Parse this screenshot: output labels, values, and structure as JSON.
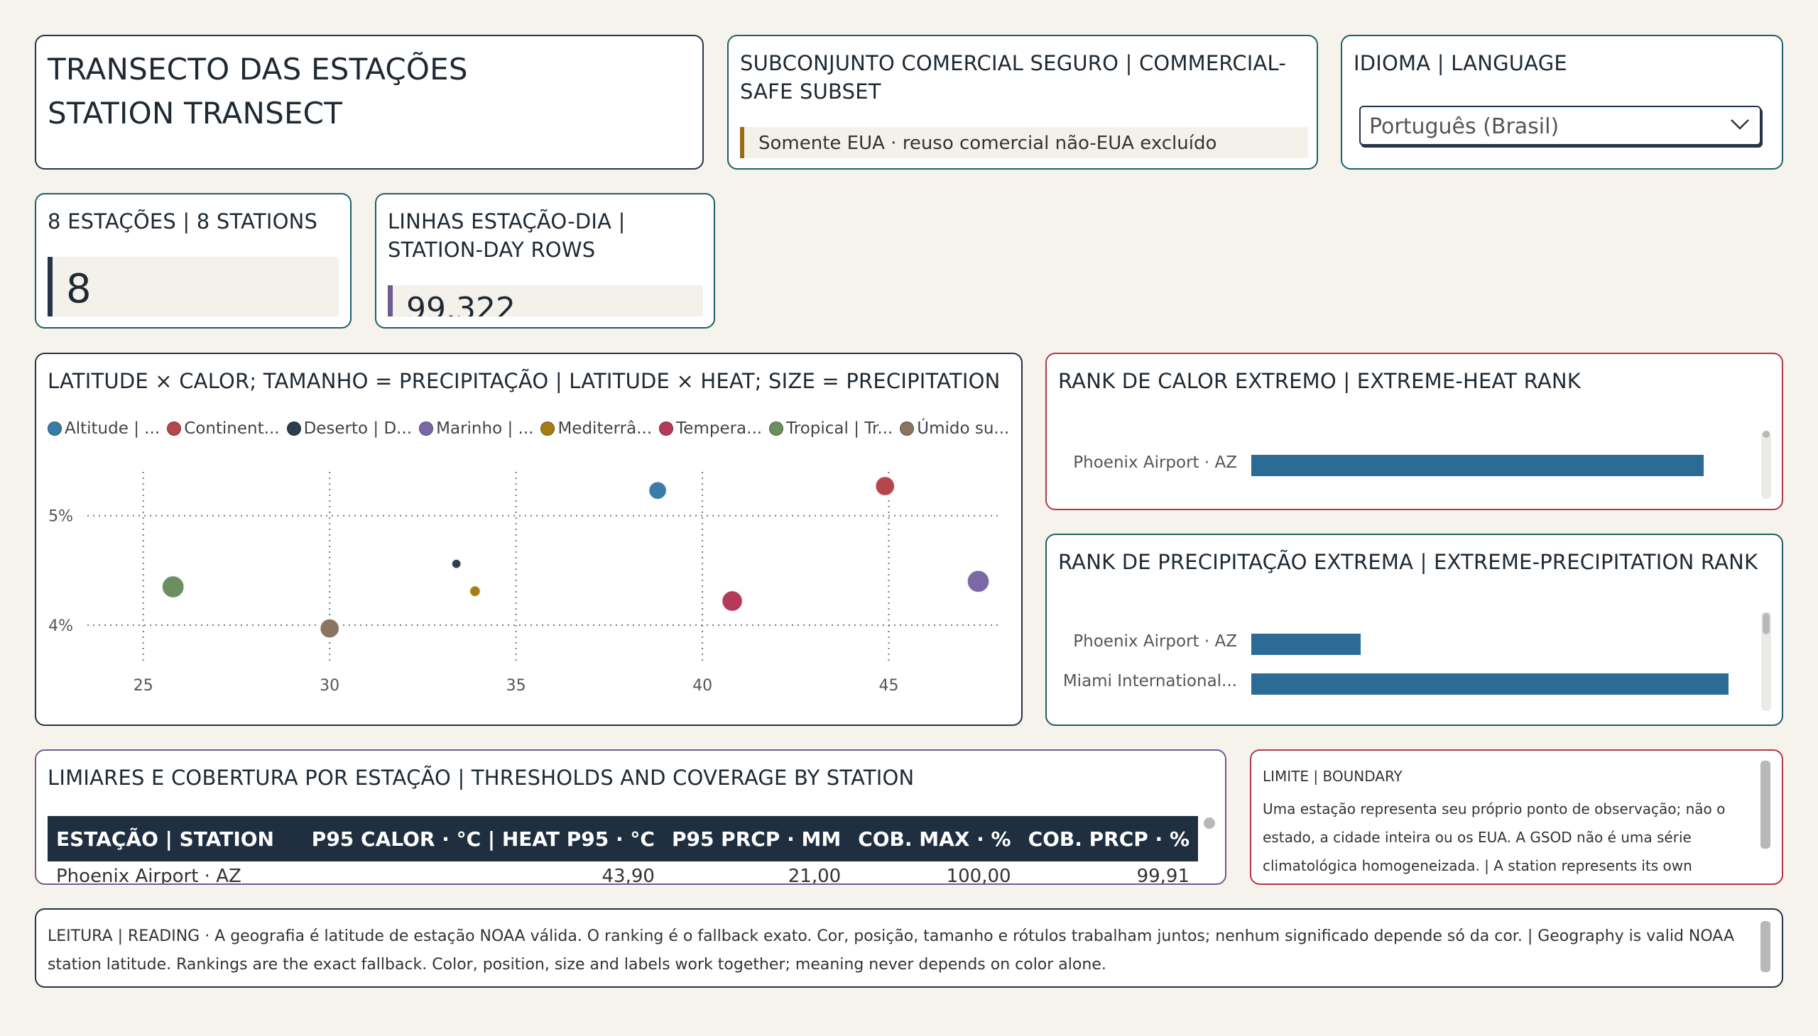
{
  "header": {
    "title_line1": "TRANSECTO DAS ESTAÇÕES",
    "title_line2": "STATION TRANSECT"
  },
  "subset": {
    "title": "SUBCONJUNTO COMERCIAL SEGURO | COMMERCIAL-SAFE SUBSET",
    "note": "Somente EUA · reuso comercial não-EUA excluído",
    "accent": "#9a6a10"
  },
  "language": {
    "title": "IDIOMA | LANGUAGE",
    "selected": "Português (Brasil)"
  },
  "kpis": [
    {
      "title": "8 ESTAÇÕES | 8 STATIONS",
      "value": "8",
      "accent": "#25344a"
    },
    {
      "title": "LINHAS ESTAÇÃO-DIA | STATION-DAY ROWS",
      "value": "99.322",
      "accent": "#6e5b8f"
    }
  ],
  "scatter": {
    "title": "LATITUDE × CALOR; TAMANHO = PRECIPITAÇÃO | LATITUDE × HEAT; SIZE = PRECIPITATION",
    "legend": [
      {
        "label": "Altitude | ...",
        "color": "#3a7ca8"
      },
      {
        "label": "Continent...",
        "color": "#b5474c"
      },
      {
        "label": "Deserto | D...",
        "color": "#2c3e50"
      },
      {
        "label": "Marinho | ...",
        "color": "#7b68a6"
      },
      {
        "label": "Mediterrâ...",
        "color": "#a87c15"
      },
      {
        "label": "Tempera...",
        "color": "#b53a5a"
      },
      {
        "label": "Tropical | Tr...",
        "color": "#6b8f5e"
      },
      {
        "label": "Úmido su...",
        "color": "#8a7560"
      }
    ]
  },
  "chart_data": {
    "type": "scatter",
    "title": "LATITUDE × CALOR; TAMANHO = PRECIPITAÇÃO | LATITUDE × HEAT; SIZE = PRECIPITATION",
    "xlabel": "",
    "ylabel": "",
    "xlim": [
      23.5,
      48
    ],
    "ylim": [
      3.65,
      5.4
    ],
    "x_ticks": [
      25,
      30,
      35,
      40,
      45
    ],
    "y_ticks": [
      {
        "value": 4,
        "label": "4%"
      },
      {
        "value": 5,
        "label": "5%"
      }
    ],
    "grid": true,
    "legend_position": "top",
    "points": [
      {
        "x": 38.8,
        "y": 5.23,
        "size": 13,
        "group": 0
      },
      {
        "x": 44.9,
        "y": 5.27,
        "size": 14,
        "group": 1
      },
      {
        "x": 33.4,
        "y": 4.56,
        "size": 7,
        "group": 2
      },
      {
        "x": 47.4,
        "y": 4.4,
        "size": 16,
        "group": 3
      },
      {
        "x": 33.9,
        "y": 4.31,
        "size": 8,
        "group": 4
      },
      {
        "x": 40.8,
        "y": 4.22,
        "size": 15,
        "group": 5
      },
      {
        "x": 25.8,
        "y": 4.35,
        "size": 16,
        "group": 6
      },
      {
        "x": 30.0,
        "y": 3.97,
        "size": 14,
        "group": 7
      }
    ]
  },
  "heat_rank": {
    "title": "RANK DE CALOR EXTREMO | EXTREME-HEAT RANK",
    "rows": [
      {
        "label": "Phoenix Airport · AZ",
        "value": 0.91
      }
    ]
  },
  "precip_rank": {
    "title": "RANK DE PRECIPITAÇÃO EXTREMA | EXTREME-PRECIPITATION RANK",
    "rows": [
      {
        "label": "Phoenix Airport · AZ",
        "value": 0.22
      },
      {
        "label": "Miami International...",
        "value": 0.96
      }
    ]
  },
  "thresholds": {
    "title": "LIMIARES E COBERTURA POR ESTAÇÃO | THRESHOLDS AND COVERAGE BY STATION",
    "columns": [
      "ESTAÇÃO | STATION",
      "P95 CALOR · °C | HEAT P95 · °C",
      "P95 PRCP · MM",
      "COB. MAX · %",
      "COB. PRCP · %"
    ],
    "rows": [
      [
        "Phoenix Airport · AZ",
        "43,90",
        "21,00",
        "100,00",
        "99,91"
      ]
    ]
  },
  "boundary": {
    "heading": "LIMITE | BOUNDARY",
    "body": "Uma estação representa seu próprio ponto de observação; não o estado, a cidade inteira ou os EUA. A GSOD não é uma série climatológica homogeneizada. | A station represents its own observing point; not its state,"
  },
  "reading": {
    "text": "LEITURA | READING · A geografia é latitude de estação NOAA válida. O ranking é o fallback exato. Cor, posição, tamanho e rótulos trabalham juntos; nenhum significado depende só da cor. | Geography is valid NOAA station latitude. Rankings are the exact fallback. Color, position, size and labels work together; meaning never depends on color alone."
  }
}
